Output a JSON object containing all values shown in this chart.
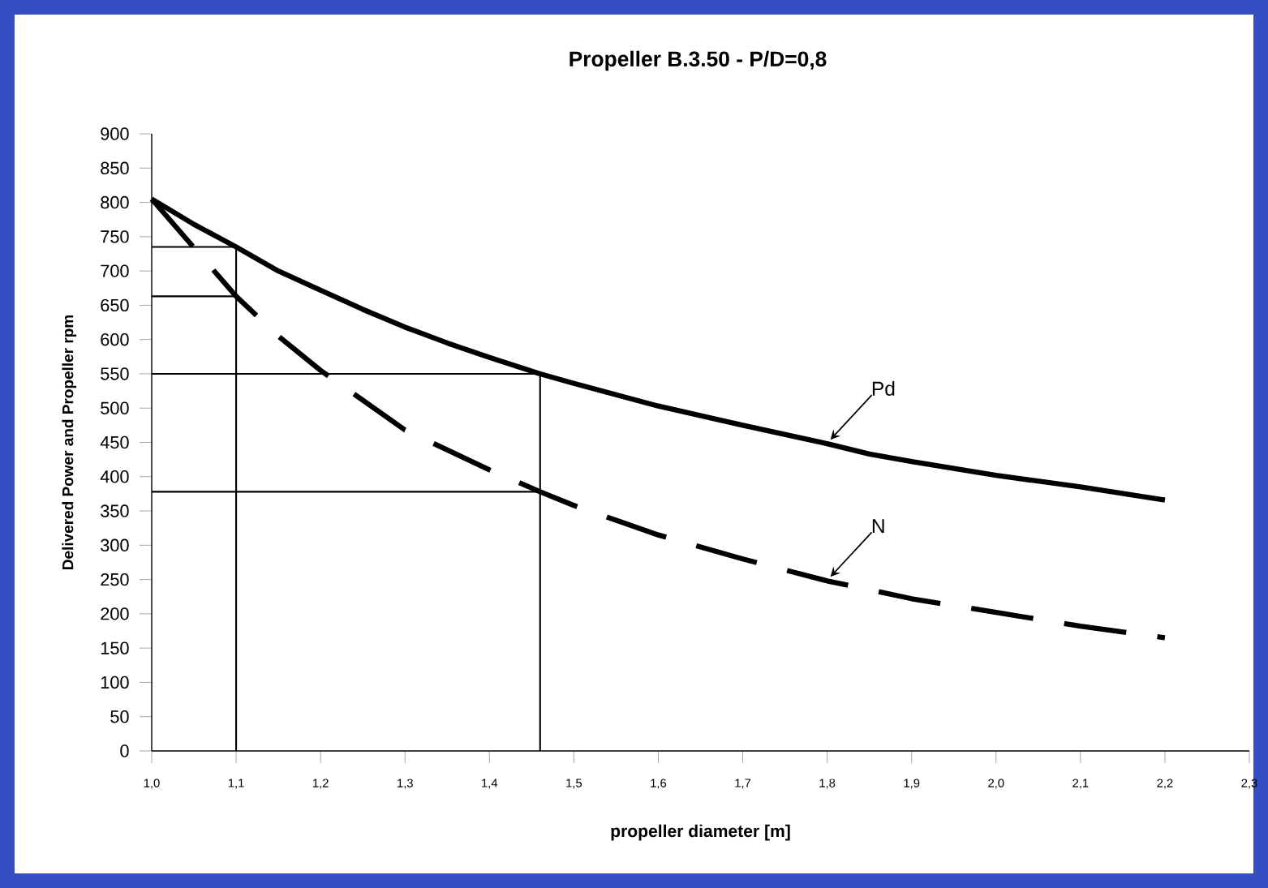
{
  "chart_data": {
    "type": "line",
    "title": "Propeller B.3.50  -  P/D=0,8",
    "xlabel": "propeller diameter [m]",
    "ylabel": "Delivered Power and Propeller rpm",
    "xlim": [
      1.0,
      2.3
    ],
    "xticks": [
      {
        "value": 1.0,
        "label": "1,0"
      },
      {
        "value": 1.1,
        "label": "1,1"
      },
      {
        "value": 1.2,
        "label": "1,2"
      },
      {
        "value": 1.3,
        "label": "1,3"
      },
      {
        "value": 1.4,
        "label": "1,4"
      },
      {
        "value": 1.5,
        "label": "1,5"
      },
      {
        "value": 1.6,
        "label": "1,6"
      },
      {
        "value": 1.7,
        "label": "1,7"
      },
      {
        "value": 1.8,
        "label": "1,8"
      },
      {
        "value": 1.9,
        "label": "1,9"
      },
      {
        "value": 2.0,
        "label": "2,0"
      },
      {
        "value": 2.1,
        "label": "2,1"
      },
      {
        "value": 2.2,
        "label": "2,2"
      },
      {
        "value": 2.3,
        "label": "2,3"
      }
    ],
    "ylim": [
      0,
      900
    ],
    "yticks": [
      0,
      50,
      100,
      150,
      200,
      250,
      300,
      350,
      400,
      450,
      500,
      550,
      600,
      650,
      700,
      750,
      800,
      850,
      900
    ],
    "grid": false,
    "marker": "none",
    "series": [
      {
        "name": "Pd",
        "color": "#000000",
        "line_style": "solid",
        "x": [
          1.0,
          1.05,
          1.1,
          1.15,
          1.2,
          1.25,
          1.3,
          1.35,
          1.4,
          1.46,
          1.5,
          1.6,
          1.7,
          1.8,
          1.85,
          1.9,
          2.0,
          2.1,
          2.2
        ],
        "values": [
          805,
          768,
          735,
          700,
          672,
          644,
          618,
          595,
          574,
          550,
          536,
          503,
          475,
          448,
          433,
          422,
          402,
          385,
          366
        ]
      },
      {
        "name": "N",
        "color": "#000000",
        "line_style": "dashed",
        "x": [
          1.0,
          1.1,
          1.15,
          1.2,
          1.3,
          1.4,
          1.46,
          1.5,
          1.6,
          1.7,
          1.8,
          1.9,
          2.0,
          2.1,
          2.2
        ],
        "values": [
          805,
          663,
          605,
          555,
          468,
          410,
          378,
          358,
          315,
          280,
          248,
          222,
          202,
          182,
          165
        ]
      },
      {
        "color": "#000000",
        "line_style": "solid",
        "x": [
          1.0,
          1.1,
          1.1
        ],
        "values": [
          735,
          735,
          0
        ]
      },
      {
        "color": "#000000",
        "line_style": "solid",
        "x": [
          1.0,
          1.1
        ],
        "values": [
          663,
          663
        ]
      },
      {
        "color": "#000000",
        "line_style": "solid",
        "x": [
          1.0,
          1.46,
          1.46
        ],
        "values": [
          550,
          550,
          0
        ]
      },
      {
        "color": "#000000",
        "line_style": "solid",
        "x": [
          1.0,
          1.46
        ],
        "values": [
          378,
          378
        ]
      }
    ]
  }
}
